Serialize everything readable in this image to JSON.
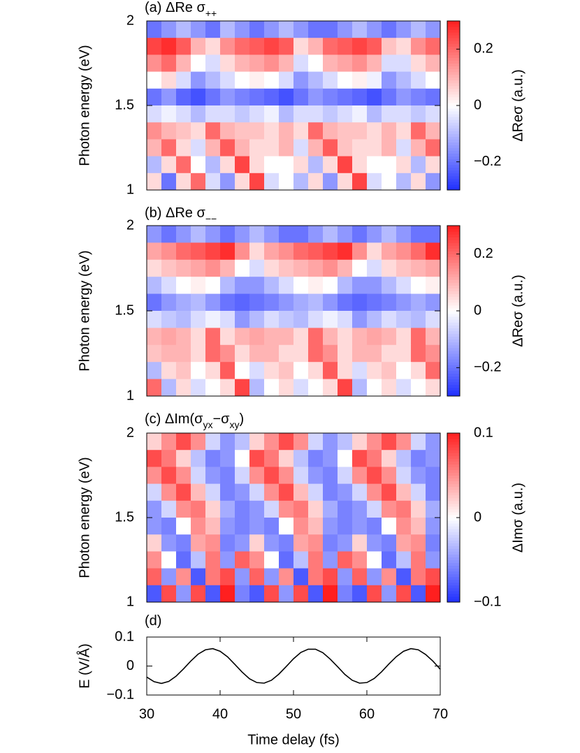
{
  "chart_data": [
    {
      "type": "heatmap",
      "title": [
        {
          "text": "(a) ΔRe σ"
        },
        {
          "sub": "++"
        }
      ],
      "y_label": "Photon energy (eV)",
      "colorbar_label": "ΔReσ (a.u.)",
      "xlim": [
        30,
        70
      ],
      "ylim": [
        1,
        2
      ],
      "yticks": [
        1,
        1.5,
        2
      ],
      "zlim": [
        -0.3,
        0.3
      ],
      "zticks": [
        {
          "value": -0.2,
          "label": "−0.2"
        },
        0,
        0.2
      ],
      "colormap": [
        "#1f2fff",
        "#ffffff",
        "#ff1f1f"
      ],
      "x": [
        31,
        33,
        35,
        37,
        39,
        41,
        43,
        45,
        47,
        49,
        51,
        53,
        55,
        57,
        59,
        61,
        63,
        65,
        67,
        69
      ],
      "y": [
        1.95,
        1.85,
        1.75,
        1.65,
        1.55,
        1.45,
        1.35,
        1.25,
        1.15,
        1.05
      ],
      "z": [
        [
          -0.2,
          -0.15,
          -0.1,
          -0.15,
          -0.2,
          -0.1,
          -0.15,
          -0.2,
          -0.15,
          -0.1,
          -0.15,
          -0.2,
          -0.2,
          -0.15,
          -0.1,
          -0.15,
          -0.2,
          -0.15,
          -0.1,
          -0.15
        ],
        [
          0.25,
          0.28,
          0.22,
          0.1,
          0.05,
          0.15,
          0.2,
          0.22,
          0.25,
          0.22,
          0.05,
          0.1,
          0.2,
          0.22,
          0.25,
          0.22,
          0.08,
          0.05,
          0.15,
          0.2
        ],
        [
          0.15,
          0.2,
          0.1,
          0,
          -0.05,
          0.05,
          0.1,
          0.12,
          0.15,
          0.1,
          -0.05,
          0,
          0.1,
          0.12,
          0.15,
          0.1,
          -0.05,
          -0.05,
          0.05,
          0.1
        ],
        [
          0,
          0.05,
          -0.05,
          -0.15,
          -0.1,
          -0.05,
          0,
          0.02,
          0,
          -0.05,
          -0.15,
          -0.1,
          -0.05,
          0,
          0.02,
          -0.02,
          -0.15,
          -0.1,
          -0.05,
          0
        ],
        [
          -0.2,
          -0.15,
          -0.22,
          -0.25,
          -0.2,
          -0.15,
          -0.18,
          -0.2,
          -0.22,
          -0.25,
          -0.2,
          -0.15,
          -0.18,
          -0.2,
          -0.22,
          -0.25,
          -0.2,
          -0.15,
          -0.18,
          -0.2
        ],
        [
          -0.05,
          -0.02,
          -0.05,
          -0.1,
          -0.05,
          -0.05,
          -0.08,
          -0.05,
          -0.02,
          -0.1,
          -0.05,
          -0.05,
          -0.08,
          -0.05,
          -0.02,
          -0.1,
          -0.05,
          -0.05,
          -0.08,
          -0.05
        ],
        [
          0.15,
          0.1,
          0.08,
          0.05,
          0.2,
          0.1,
          0.08,
          0.08,
          0.05,
          0.1,
          0.05,
          0.2,
          0.1,
          0.08,
          0.08,
          0.05,
          0.1,
          0.05,
          0.2,
          0.1
        ],
        [
          0.1,
          0.2,
          0.05,
          -0.05,
          0.1,
          0.22,
          0.1,
          0.05,
          0.05,
          0.1,
          -0.05,
          0.1,
          0.22,
          0.08,
          0.05,
          0.05,
          0.1,
          -0.05,
          0.1,
          0.2
        ],
        [
          -0.1,
          0.05,
          0.2,
          0,
          -0.1,
          0.05,
          0.25,
          0.05,
          0,
          0,
          0.05,
          -0.1,
          0.05,
          0.25,
          0.05,
          0,
          0,
          0.05,
          -0.1,
          0.05
        ],
        [
          0.05,
          -0.2,
          0.05,
          0.2,
          -0.05,
          -0.15,
          0.05,
          0.25,
          -0.05,
          0,
          -0.1,
          0.05,
          -0.15,
          0.05,
          0.25,
          -0.05,
          0,
          -0.1,
          0.05,
          -0.15
        ]
      ]
    },
    {
      "type": "heatmap",
      "title": [
        {
          "text": "(b) ΔRe σ"
        },
        {
          "sub": "−−"
        }
      ],
      "y_label": "Photon energy (eV)",
      "colorbar_label": "ΔReσ (a.u.)",
      "xlim": [
        30,
        70
      ],
      "ylim": [
        1,
        2
      ],
      "yticks": [
        1,
        1.5,
        2
      ],
      "zlim": [
        -0.3,
        0.3
      ],
      "zticks": [
        {
          "value": -0.2,
          "label": "−0.2"
        },
        0,
        0.2
      ],
      "colormap": [
        "#1f2fff",
        "#ffffff",
        "#ff1f1f"
      ],
      "x": [
        31,
        33,
        35,
        37,
        39,
        41,
        43,
        45,
        47,
        49,
        51,
        53,
        55,
        57,
        59,
        61,
        63,
        65,
        67,
        69
      ],
      "y": [
        1.95,
        1.85,
        1.75,
        1.65,
        1.55,
        1.45,
        1.35,
        1.25,
        1.15,
        1.05
      ],
      "z": [
        [
          -0.15,
          -0.2,
          -0.15,
          -0.1,
          -0.15,
          -0.2,
          -0.15,
          -0.1,
          -0.15,
          -0.2,
          -0.2,
          -0.15,
          -0.1,
          -0.15,
          -0.2,
          -0.15,
          -0.1,
          -0.15,
          -0.2,
          -0.2
        ],
        [
          0.12,
          0.15,
          0.2,
          0.22,
          0.25,
          0.28,
          0.15,
          0.05,
          0.12,
          0.15,
          0.2,
          0.22,
          0.25,
          0.28,
          0.15,
          0.05,
          0.12,
          0.15,
          0.2,
          0.28
        ],
        [
          0.05,
          0.08,
          0.1,
          0.12,
          0.15,
          0.1,
          0,
          -0.05,
          0.05,
          0.08,
          0.1,
          0.12,
          0.15,
          0.1,
          0,
          -0.05,
          0.05,
          0.08,
          0.1,
          0.12
        ],
        [
          -0.1,
          -0.05,
          0,
          0.02,
          0,
          -0.1,
          -0.15,
          -0.15,
          -0.1,
          -0.05,
          0,
          0.02,
          0,
          -0.1,
          -0.15,
          -0.15,
          -0.1,
          -0.05,
          0,
          0.02
        ],
        [
          -0.2,
          -0.15,
          -0.12,
          -0.1,
          -0.15,
          -0.2,
          -0.22,
          -0.2,
          -0.18,
          -0.15,
          -0.12,
          -0.1,
          -0.15,
          -0.2,
          -0.22,
          -0.2,
          -0.18,
          -0.15,
          -0.12,
          -0.15
        ],
        [
          -0.05,
          -0.08,
          -0.1,
          -0.05,
          -0.02,
          -0.05,
          -0.15,
          -0.1,
          -0.05,
          -0.08,
          -0.1,
          -0.05,
          -0.02,
          -0.05,
          -0.15,
          -0.1,
          -0.05,
          -0.08,
          -0.1,
          -0.05
        ],
        [
          0.1,
          0.12,
          0.1,
          0.05,
          0.2,
          0.05,
          0.1,
          0.12,
          0.1,
          0.1,
          0.05,
          0.2,
          0.1,
          0.05,
          0.1,
          0.12,
          0.1,
          0.05,
          0.2,
          0.1
        ],
        [
          0.08,
          0.1,
          0.1,
          0.05,
          0.2,
          0.15,
          0.05,
          0.1,
          0.1,
          0.05,
          0.05,
          0.2,
          0.15,
          0.05,
          0.1,
          0.1,
          0.05,
          0.05,
          0.2,
          0.15
        ],
        [
          -0.1,
          0.05,
          0.08,
          0,
          0.05,
          0.22,
          0,
          -0.05,
          0.05,
          0.08,
          0,
          0.05,
          0.22,
          0.05,
          -0.05,
          0.05,
          0.08,
          0,
          0.05,
          0.2
        ],
        [
          0.2,
          -0.1,
          0.05,
          -0.05,
          0,
          0.05,
          0.25,
          -0.1,
          0,
          0.05,
          -0.05,
          0,
          0.05,
          0.25,
          -0.1,
          0,
          0.05,
          -0.05,
          0,
          0.05
        ]
      ]
    },
    {
      "type": "heatmap",
      "title": [
        {
          "text": "(c) ΔIm(σ"
        },
        {
          "sub": "yx"
        },
        {
          "text": "−σ"
        },
        {
          "sub": "xy"
        },
        {
          "text": ")"
        }
      ],
      "y_label": "Photon energy (eV)",
      "colorbar_label": "ΔImσ (a.u.)",
      "xlim": [
        30,
        70
      ],
      "ylim": [
        1,
        2
      ],
      "yticks": [
        1,
        1.5,
        2
      ],
      "zlim": [
        -0.1,
        0.1
      ],
      "zticks": [
        {
          "value": -0.1,
          "label": "−0.1"
        },
        0,
        0.1
      ],
      "colormap": [
        "#1f2fff",
        "#ffffff",
        "#ff1f1f"
      ],
      "x": [
        31,
        33,
        35,
        37,
        39,
        41,
        43,
        45,
        47,
        49,
        51,
        53,
        55,
        57,
        59,
        61,
        63,
        65,
        67,
        69
      ],
      "y": [
        1.95,
        1.85,
        1.75,
        1.65,
        1.55,
        1.45,
        1.35,
        1.25,
        1.15,
        1.05
      ],
      "z": [
        [
          0.02,
          0.05,
          0.08,
          0.05,
          -0.02,
          -0.05,
          -0.03,
          0.02,
          0.05,
          0.08,
          0.05,
          -0.02,
          -0.05,
          -0.03,
          0.02,
          0.05,
          0.08,
          0.05,
          -0.02,
          -0.05
        ],
        [
          0.08,
          0.06,
          0.02,
          -0.03,
          -0.06,
          -0.05,
          0,
          0.08,
          0.06,
          0.02,
          -0.03,
          -0.06,
          -0.05,
          0,
          0.08,
          0.06,
          0.02,
          -0.03,
          -0.06,
          -0.05
        ],
        [
          0.05,
          0.08,
          0.05,
          -0.02,
          -0.05,
          -0.06,
          -0.02,
          0.05,
          0.08,
          0.05,
          -0.02,
          -0.05,
          -0.06,
          -0.02,
          0.05,
          0.08,
          0.05,
          -0.02,
          -0.05,
          -0.06
        ],
        [
          -0.02,
          0.05,
          0.08,
          0.03,
          -0.02,
          -0.06,
          -0.05,
          -0.02,
          0.05,
          0.08,
          0.03,
          -0.02,
          -0.06,
          -0.05,
          -0.02,
          0.05,
          0.08,
          0.03,
          -0.02,
          -0.06
        ],
        [
          -0.05,
          -0.02,
          0.05,
          0.06,
          0.02,
          -0.04,
          -0.06,
          -0.05,
          -0.02,
          0.05,
          0.06,
          0.02,
          -0.04,
          -0.06,
          -0.05,
          -0.02,
          0.05,
          0.06,
          0.02,
          -0.04
        ],
        [
          -0.05,
          -0.06,
          0,
          0.05,
          0.03,
          -0.05,
          -0.06,
          -0.05,
          -0.06,
          0,
          0.05,
          0.03,
          -0.05,
          -0.06,
          -0.05,
          -0.06,
          0,
          0.05,
          0.03,
          -0.05
        ],
        [
          0.02,
          -0.05,
          -0.06,
          0.04,
          0.05,
          -0.06,
          -0.05,
          0.02,
          -0.05,
          -0.06,
          0.04,
          0.05,
          -0.06,
          -0.05,
          0.02,
          -0.05,
          -0.06,
          0.04,
          0.05,
          -0.06
        ],
        [
          0.05,
          0,
          -0.07,
          -0.03,
          0.06,
          -0.05,
          0.07,
          0.05,
          0,
          -0.07,
          -0.03,
          0.06,
          -0.05,
          0.07,
          0.05,
          0,
          -0.07,
          -0.03,
          0.06,
          -0.05
        ],
        [
          0.07,
          -0.05,
          0.05,
          -0.08,
          0.06,
          0.08,
          -0.05,
          0.07,
          -0.05,
          0.05,
          -0.08,
          0.06,
          0.08,
          -0.05,
          0.07,
          -0.05,
          0.05,
          -0.08,
          0.06,
          0.08
        ],
        [
          -0.08,
          0.08,
          -0.05,
          0.08,
          -0.08,
          0.1,
          -0.06,
          -0.08,
          0.08,
          -0.05,
          0.08,
          -0.08,
          0.1,
          -0.06,
          -0.08,
          0.08,
          -0.05,
          0.08,
          -0.08,
          0.1
        ]
      ]
    },
    {
      "type": "line",
      "title": [
        {
          "text": "(d)"
        }
      ],
      "y_label": "E (V/Å)",
      "x_label": "Time delay (fs)",
      "color": "#000000",
      "xlim": [
        30,
        70
      ],
      "xticks": [
        30,
        40,
        50,
        60,
        70
      ],
      "ylim": [
        -0.1,
        0.1
      ],
      "yticks": [
        {
          "value": -0.1,
          "label": "−0.1"
        },
        0,
        0.1
      ],
      "x": [
        30,
        31,
        32,
        33,
        34,
        35,
        36,
        37,
        38,
        39,
        40,
        41,
        42,
        43,
        44,
        45,
        46,
        47,
        48,
        49,
        50,
        51,
        52,
        53,
        54,
        55,
        56,
        57,
        58,
        59,
        60,
        61,
        62,
        63,
        64,
        65,
        66,
        67,
        68,
        69,
        70
      ],
      "values": [
        -0.038,
        -0.054,
        -0.06,
        -0.053,
        -0.035,
        -0.01,
        0.017,
        0.041,
        0.056,
        0.06,
        0.051,
        0.032,
        0.006,
        -0.021,
        -0.044,
        -0.057,
        -0.059,
        -0.049,
        -0.028,
        -0.002,
        0.025,
        0.047,
        0.058,
        0.058,
        0.046,
        0.024,
        -0.002,
        -0.029,
        -0.049,
        -0.059,
        -0.057,
        -0.043,
        -0.02,
        0.007,
        0.032,
        0.051,
        0.06,
        0.056,
        0.04,
        0.017,
        -0.011
      ]
    }
  ]
}
